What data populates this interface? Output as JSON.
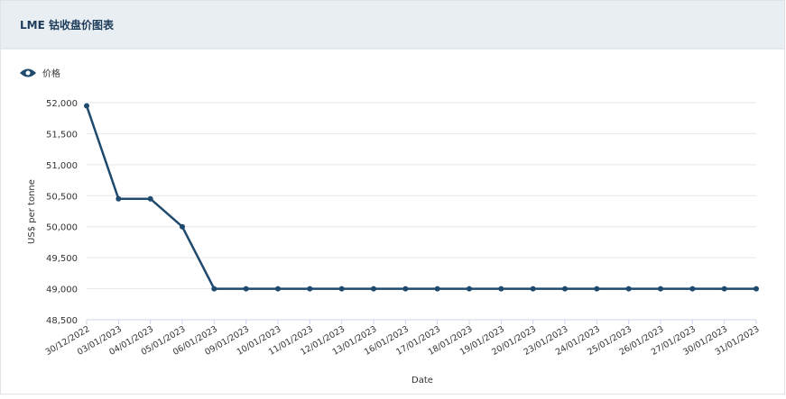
{
  "chart_data": {
    "type": "line",
    "title": "LME 钴收盘价图表",
    "categories": [
      "30/12/2022",
      "03/01/2023",
      "04/01/2023",
      "05/01/2023",
      "06/01/2023",
      "09/01/2023",
      "10/01/2023",
      "11/01/2023",
      "12/01/2023",
      "13/01/2023",
      "16/01/2023",
      "17/01/2023",
      "18/01/2023",
      "19/01/2023",
      "20/01/2023",
      "23/01/2023",
      "24/01/2023",
      "25/01/2023",
      "26/01/2023",
      "27/01/2023",
      "30/01/2023",
      "31/01/2023"
    ],
    "series": [
      {
        "name": "价格",
        "color": "#1f4a6e",
        "values": [
          51950,
          50450,
          50450,
          50000,
          49000,
          49000,
          49000,
          49000,
          49000,
          49000,
          49000,
          49000,
          49000,
          49000,
          49000,
          49000,
          49000,
          49000,
          49000,
          49000,
          49000,
          49000
        ]
      }
    ],
    "xlabel": "Date",
    "ylabel": "US$ per tonne",
    "ylim": [
      48500,
      52000
    ],
    "yticks": [
      {
        "value": 48500,
        "label": "48,500"
      },
      {
        "value": 49000,
        "label": "49,000"
      },
      {
        "value": 49500,
        "label": "49,500"
      },
      {
        "value": 50000,
        "label": "50,000"
      },
      {
        "value": 50500,
        "label": "50,500"
      },
      {
        "value": 51000,
        "label": "51,000"
      },
      {
        "value": 51500,
        "label": "51,500"
      },
      {
        "value": 52000,
        "label": "52,000"
      }
    ],
    "grid": true
  }
}
